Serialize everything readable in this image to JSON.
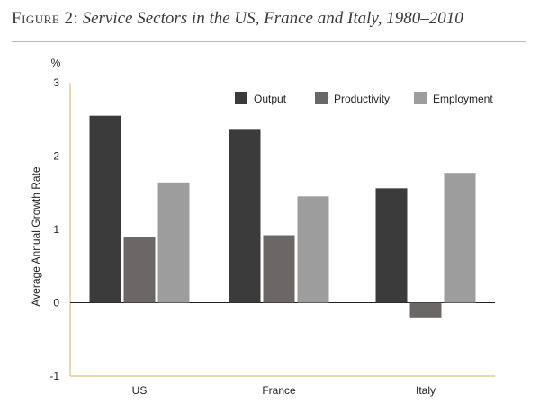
{
  "figure": {
    "label": "Figure 2",
    "caption": "Service Sectors in the US, France and Italy, 1980–2010"
  },
  "colors": {
    "output": "#3b3b3b",
    "productivity": "#6a6766",
    "employment": "#9d9d9d",
    "axis": "#d9c07a",
    "zero_line": "#222222",
    "text": "#222222"
  },
  "chart_data": {
    "type": "bar",
    "title": "Service Sectors in the US, France and Italy, 1980–2010",
    "unit": "%",
    "xlabel": "",
    "ylabel": "Average Annual Growth Rate",
    "categories": [
      "US",
      "France",
      "Italy"
    ],
    "series": [
      {
        "name": "Output",
        "values": [
          2.55,
          2.37,
          1.56
        ]
      },
      {
        "name": "Productivity",
        "values": [
          0.9,
          0.92,
          -0.2
        ]
      },
      {
        "name": "Employment",
        "values": [
          1.64,
          1.45,
          1.77
        ]
      }
    ],
    "ylim": [
      -1,
      3
    ],
    "yticks": [
      "3",
      "2",
      "1",
      "0",
      "-1"
    ],
    "grid": false,
    "legend_position": "top-right"
  }
}
